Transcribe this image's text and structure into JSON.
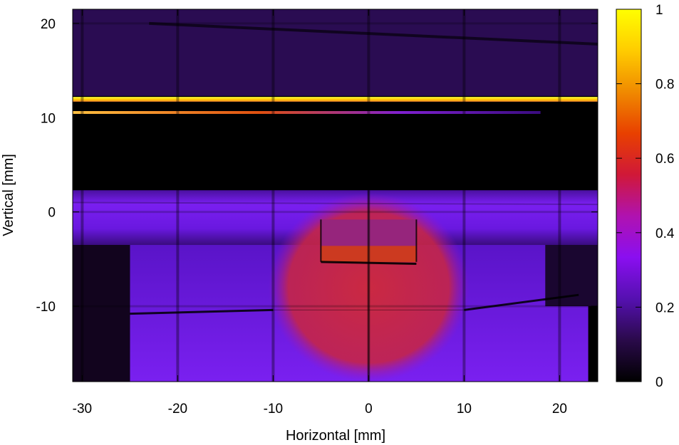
{
  "chart_data": {
    "type": "heatmap",
    "xlabel": "Horizontal [mm]",
    "ylabel": "Vertical [mm]",
    "xlim": [
      -31,
      24
    ],
    "ylim": [
      -18,
      21.5
    ],
    "x_ticks": [
      -30,
      -20,
      -10,
      0,
      10,
      20
    ],
    "y_ticks": [
      -10,
      0,
      10,
      20
    ],
    "x_tick_labels": [
      "-30",
      "-20",
      "-10",
      "0",
      "10",
      "20"
    ],
    "y_tick_labels": [
      "-10",
      "0",
      "10",
      "20"
    ],
    "colorbar": {
      "range": [
        0,
        1
      ],
      "ticks": [
        0,
        0.2,
        0.4,
        0.6,
        0.8,
        1
      ],
      "tick_labels": [
        "0",
        "0.2",
        "0.4",
        "0.6",
        "0.8",
        "1"
      ],
      "colormap": [
        "#000000",
        "#2a0a4a",
        "#5510b0",
        "#8a0ff0",
        "#b012b0",
        "#d01838",
        "#e84000",
        "#f08a00",
        "#ffcc00",
        "#ffff00"
      ]
    },
    "regions": [
      {
        "label": "upper band",
        "x": [
          -31,
          24
        ],
        "y": [
          12.3,
          21.5
        ],
        "value": 0.12
      },
      {
        "label": "bright line",
        "x": [
          -31,
          24
        ],
        "y": [
          11.7,
          12.2
        ],
        "value": 1.0
      },
      {
        "label": "thin line",
        "x": [
          -31,
          18
        ],
        "y": [
          10.4,
          10.7
        ],
        "value": 0.6
      },
      {
        "label": "dark gap",
        "x": [
          -31,
          24
        ],
        "y": [
          2.3,
          10.4
        ],
        "value": 0.01
      },
      {
        "label": "middle band",
        "x": [
          -31,
          24
        ],
        "y": [
          -3.5,
          2.3
        ],
        "value": 0.3
      },
      {
        "label": "central box",
        "x": [
          -5,
          5
        ],
        "y": [
          -5.3,
          -0.8
        ],
        "value": 0.52
      },
      {
        "label": "central disc",
        "center": [
          0,
          -8
        ],
        "radius": 10,
        "value": 0.46
      },
      {
        "label": "lower plateau",
        "x": [
          -25,
          23
        ],
        "y": [
          -18,
          -3.5
        ],
        "value": 0.3
      }
    ],
    "grid_lines_x": [
      -30,
      -20,
      -10,
      0,
      10,
      20
    ],
    "grid_lines_y": [
      -10,
      0,
      10,
      20
    ]
  }
}
